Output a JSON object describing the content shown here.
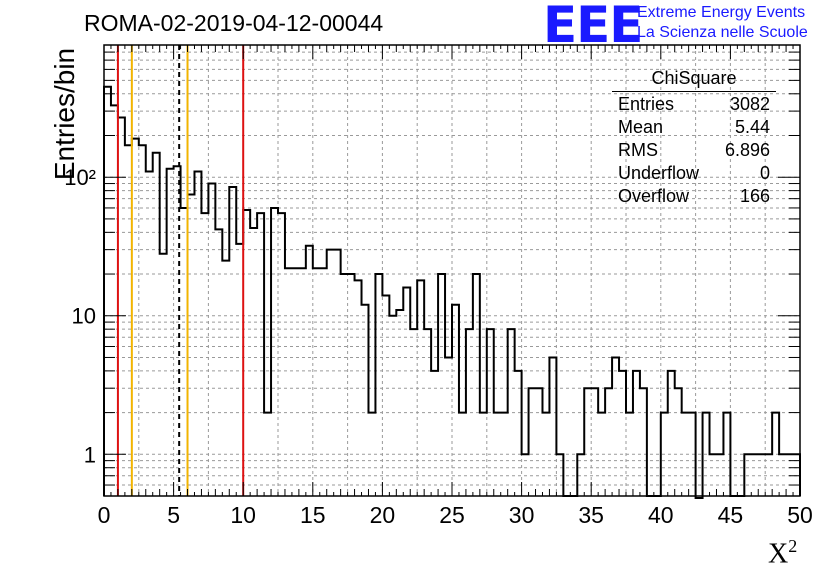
{
  "title": "ROMA-02-2019-04-12-00044",
  "logo": {
    "text": "EEE",
    "line1": "Extreme Energy Events",
    "line2": "La Scienza nelle Scuole",
    "color": "#1a1aff"
  },
  "stats": {
    "title": "ChiSquare",
    "rows": [
      {
        "key": "Entries",
        "value": "3082"
      },
      {
        "key": "Mean",
        "value": "5.44"
      },
      {
        "key": "RMS",
        "value": "6.896"
      },
      {
        "key": "Underflow",
        "value": "0"
      },
      {
        "key": "Overflow",
        "value": "166"
      }
    ]
  },
  "chart_data": {
    "type": "histogram",
    "title": "ROMA-02-2019-04-12-00044",
    "xlabel": "X",
    "xlabel_superscript": "2",
    "ylabel": "Entries/bin",
    "xlim": [
      0,
      50
    ],
    "ylim": [
      0.5,
      900
    ],
    "yscale": "log",
    "grid": true,
    "bin_width": 0.5,
    "x_ticks": [
      "0",
      "5",
      "10",
      "15",
      "20",
      "25",
      "30",
      "35",
      "40",
      "45",
      "50"
    ],
    "y_ticks": [
      "1",
      "10",
      "10²"
    ],
    "values": [
      450,
      330,
      270,
      170,
      190,
      170,
      110,
      150,
      28,
      115,
      120,
      60,
      75,
      110,
      55,
      90,
      42,
      25,
      85,
      33,
      58,
      43,
      55,
      2,
      60,
      55,
      22,
      22,
      22,
      32,
      22,
      22,
      30,
      30,
      20,
      20,
      18,
      12,
      2,
      20,
      14,
      10,
      11,
      16,
      8,
      18,
      8,
      4,
      20,
      5,
      12,
      2,
      8,
      20,
      2,
      8,
      2,
      2,
      8,
      4,
      1,
      3,
      3,
      2,
      5,
      1,
      0.4,
      0.4,
      1,
      3,
      3,
      2,
      3,
      5,
      4,
      2,
      4,
      3,
      0.4,
      0.4,
      2,
      4,
      3,
      2,
      2,
      0,
      2,
      1,
      1,
      2,
      0.5,
      0.5,
      1,
      1,
      1,
      1,
      2,
      1,
      1,
      1
    ],
    "vertical_lines": [
      {
        "x": 1.0,
        "color": "#dd1111",
        "style": "solid"
      },
      {
        "x": 2.0,
        "color": "#f2b400",
        "style": "solid"
      },
      {
        "x": 5.4,
        "color": "#000000",
        "style": "dashed"
      },
      {
        "x": 6.0,
        "color": "#f2b400",
        "style": "solid"
      },
      {
        "x": 10.0,
        "color": "#dd1111",
        "style": "solid"
      }
    ]
  }
}
